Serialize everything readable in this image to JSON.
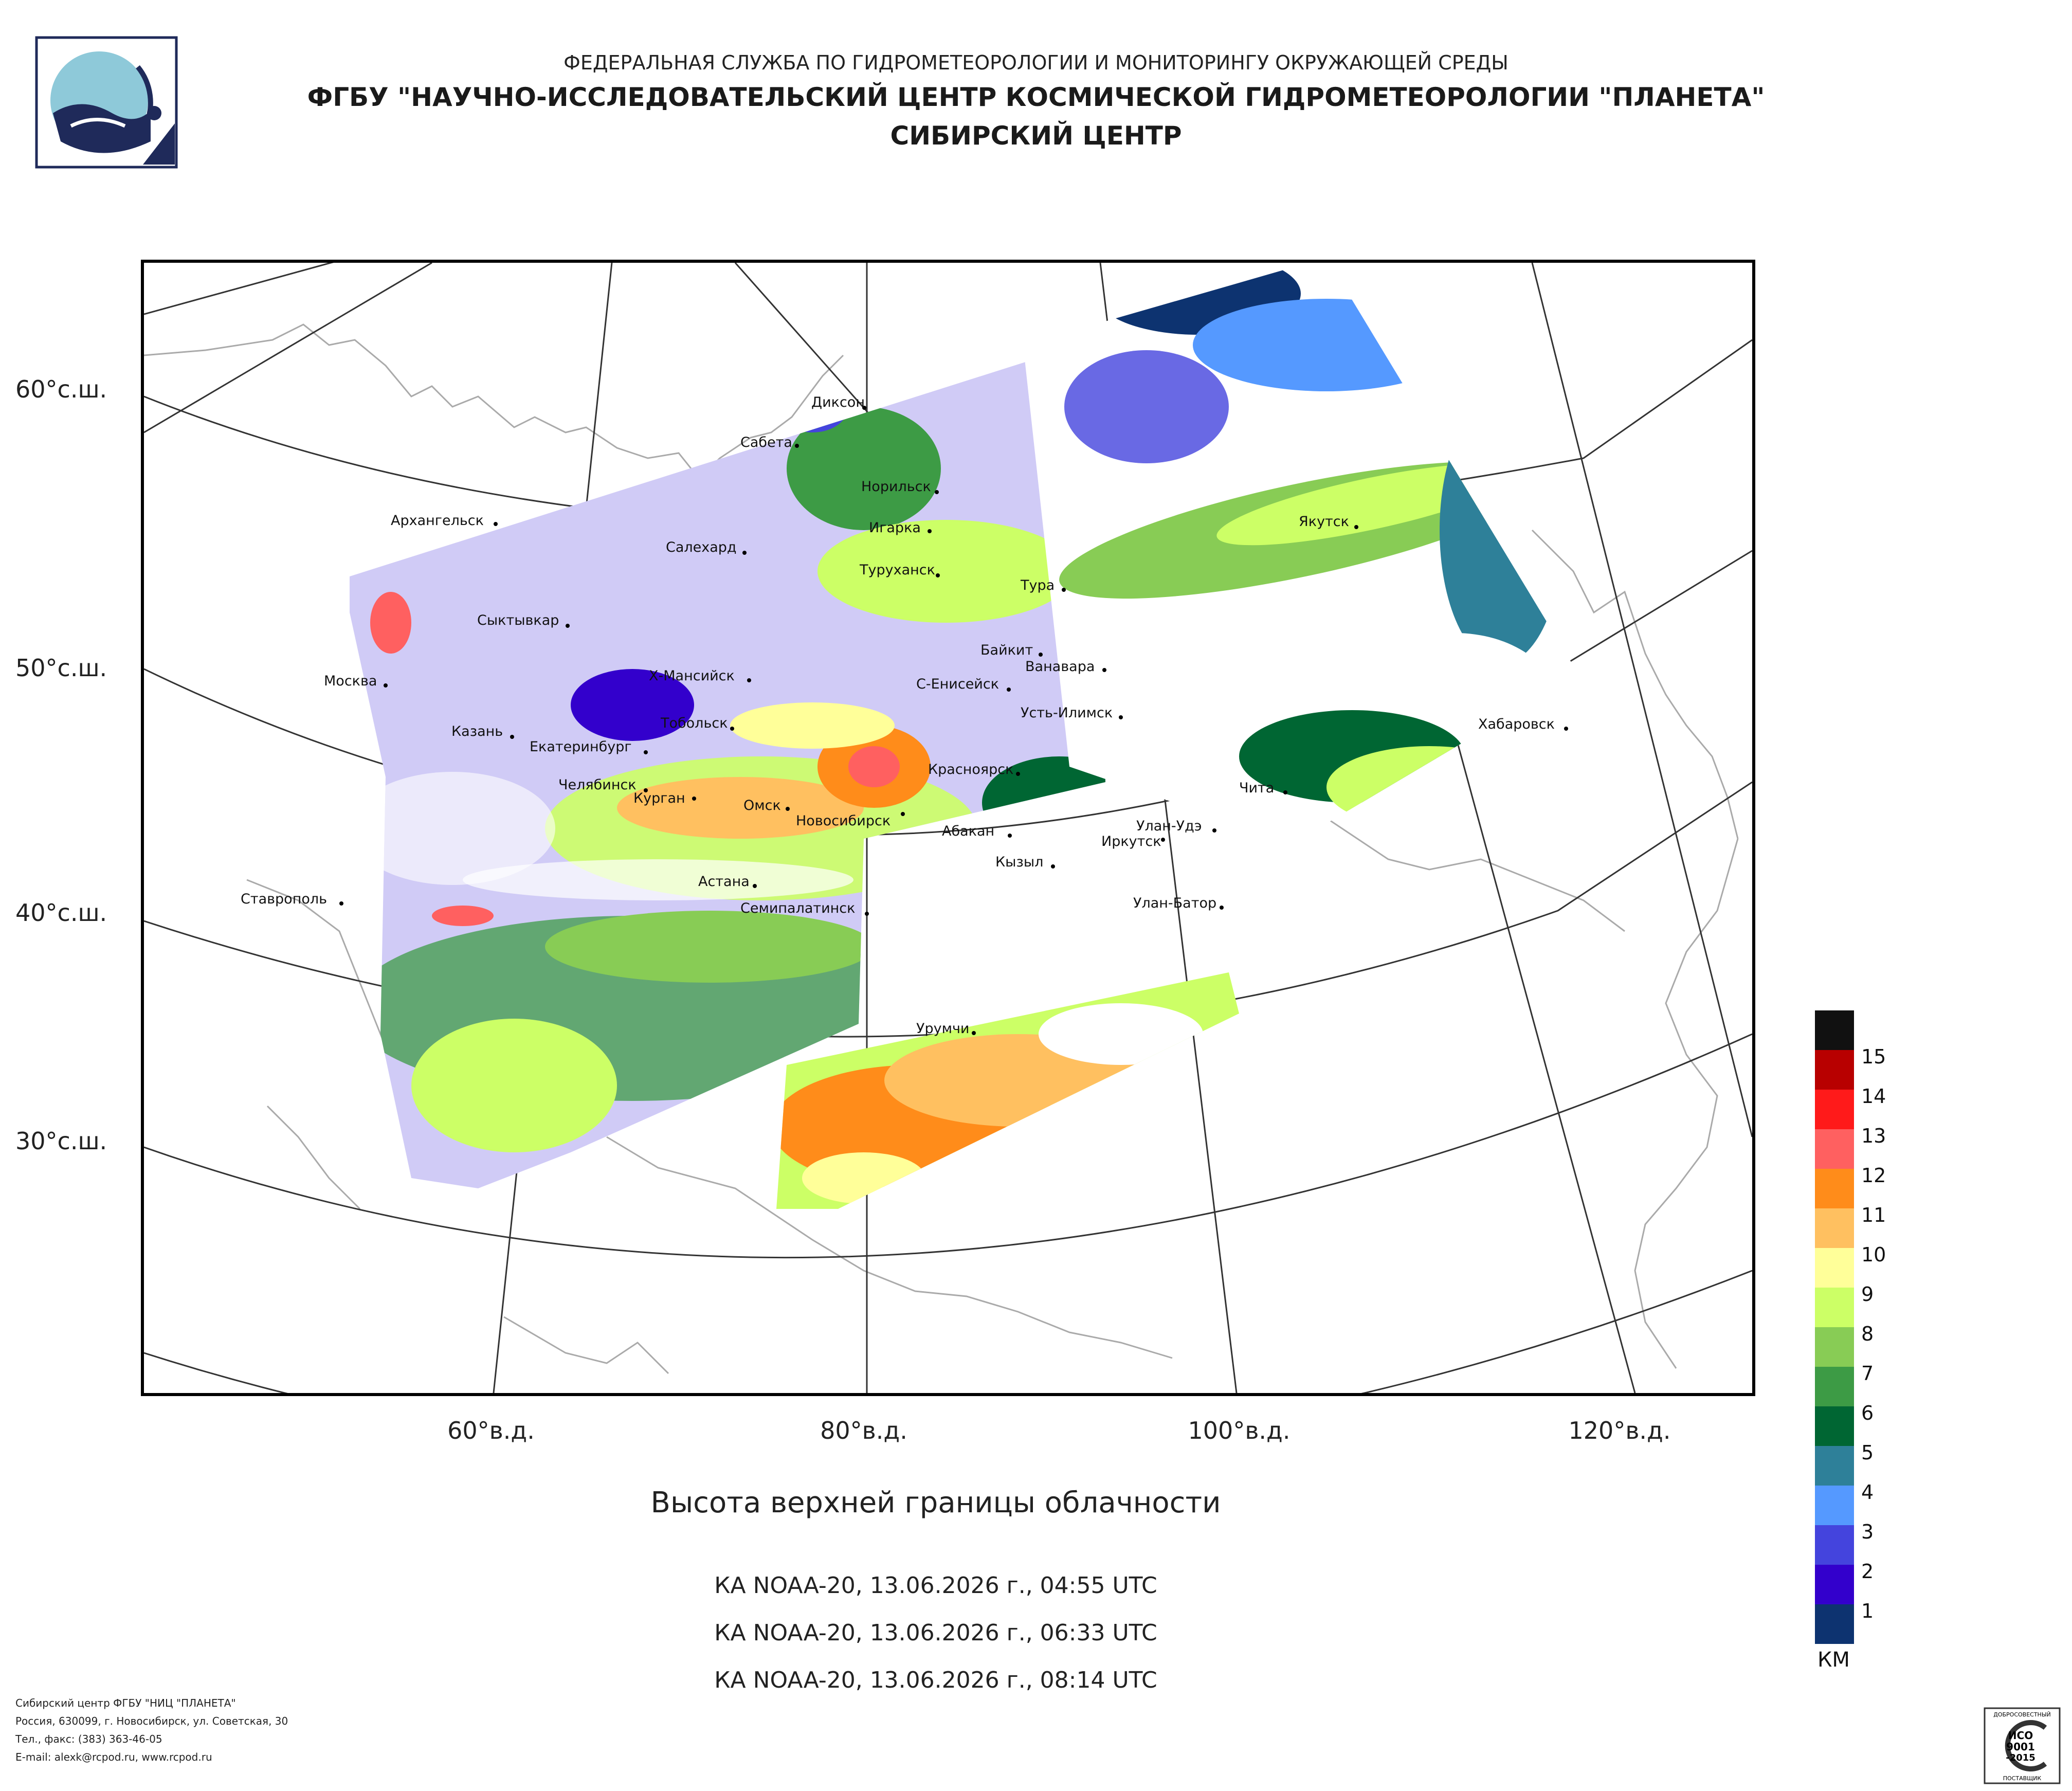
{
  "header": {
    "line1": "ФЕДЕРАЛЬНАЯ СЛУЖБА ПО ГИДРОМЕТЕОРОЛОГИИ И МОНИТОРИНГУ ОКРУЖАЮЩЕЙ СРЕДЫ",
    "line2": "ФГБУ \"НАУЧНО-ИССЛЕДОВАТЕЛЬСКИЙ ЦЕНТР КОСМИЧЕСКОЙ ГИДРОМЕТЕОРОЛОГИИ \"ПЛАНЕТА\"",
    "line3": "СИБИРСКИЙ ЦЕНТР"
  },
  "map": {
    "lat_labels": [
      "60°с.ш.",
      "50°с.ш.",
      "40°с.ш.",
      "30°с.ш."
    ],
    "lon_labels": [
      "60°в.д.",
      "80°в.д.",
      "100°в.д.",
      "120°в.д."
    ],
    "cities": [
      "Диксон",
      "Сабета",
      "Норильск",
      "Архангельск",
      "Игарка",
      "Салехард",
      "Якутск",
      "Туруханск",
      "Тура",
      "Сыктывкар",
      "Байкит",
      "Ванавара",
      "Москва",
      "Х-Мансийск",
      "С-Енисейск",
      "Усть-Илимск",
      "Тобольск",
      "Хабаровск",
      "Казань",
      "Екатеринбург",
      "Красноярск",
      "Чита",
      "Челябинск",
      "Курган",
      "Омск",
      "Новосибирск",
      "Абакан",
      "Улан-Удэ",
      "Иркутск",
      "Кызыл",
      "Ставрополь",
      "Астана",
      "Семипалатинск",
      "Улан-Батор",
      "Урумчи"
    ]
  },
  "product": {
    "title": "Высота верхней границы облачности",
    "passes": [
      "КА NOAA-20, 13.06.2026 г., 04:55 UTC",
      "КА NOAA-20, 13.06.2026 г., 06:33 UTC",
      "КА NOAA-20, 13.06.2026 г., 08:14 UTC"
    ]
  },
  "legend": {
    "unit": "КМ",
    "items": [
      {
        "label": "15",
        "color": "#111111"
      },
      {
        "label": "14",
        "color": "#b80000"
      },
      {
        "label": "13",
        "color": "#ff1a1a"
      },
      {
        "label": "12",
        "color": "#ff6060"
      },
      {
        "label": "11",
        "color": "#ff8c1a"
      },
      {
        "label": "10",
        "color": "#ffc060"
      },
      {
        "label": "9",
        "color": "#ffff99"
      },
      {
        "label": "8",
        "color": "#ccff66"
      },
      {
        "label": "7",
        "color": "#88cc55"
      },
      {
        "label": "6",
        "color": "#3d9b45"
      },
      {
        "label": "5",
        "color": "#006633"
      },
      {
        "label": "4",
        "color": "#2e8099"
      },
      {
        "label": "3",
        "color": "#5599ff"
      },
      {
        "label": "2",
        "color": "#4444dd"
      },
      {
        "label": "1",
        "color": "#3300cc"
      },
      {
        "label": "",
        "color": "#0d3370"
      }
    ]
  },
  "footer": {
    "line1": "Сибирский центр ФГБУ \"НИЦ \"ПЛАНЕТА\"",
    "line2": "Россия, 630099, г. Новосибирск, ул. Советская, 30",
    "line3": "Тел., факс: (383) 363-46-05",
    "line4": "E-mail: alexk@rcpod.ru, www.rcpod.ru"
  },
  "iso_badge": {
    "top": "ДОБРОСОВЕСТНЫЙ",
    "l1": "ИСО",
    "l2": "9001",
    "l3": "-2015",
    "bottom": "ПОСТАВЩИК"
  }
}
